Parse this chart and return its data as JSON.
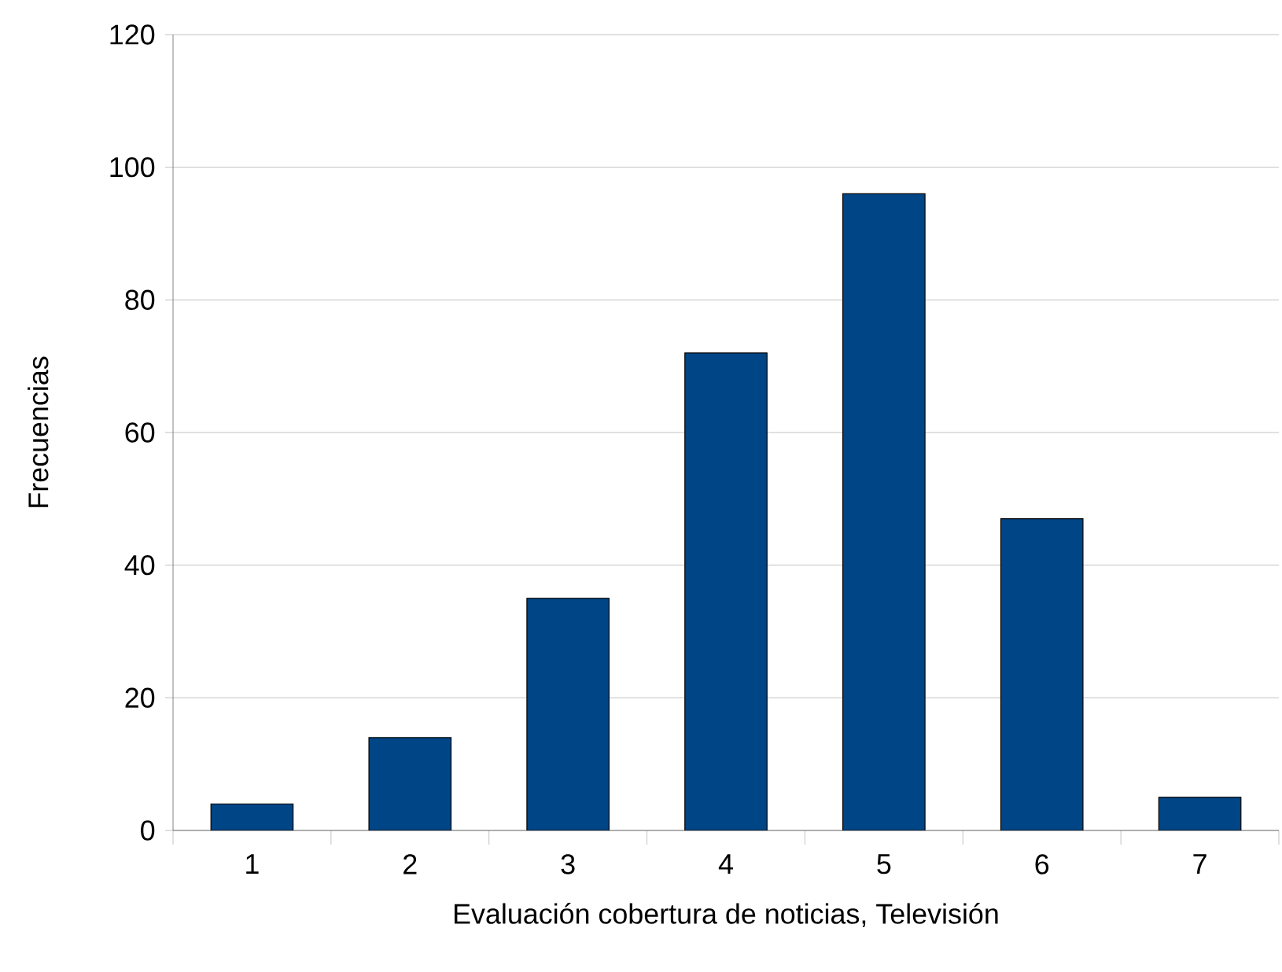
{
  "chart_data": {
    "type": "bar",
    "xlabel": "Evaluación cobertura de noticias, Televisión",
    "ylabel": "Frecuencias",
    "categories": [
      "1",
      "2",
      "3",
      "4",
      "5",
      "6",
      "7"
    ],
    "values": [
      4,
      14,
      35,
      72,
      96,
      47,
      5
    ],
    "color": "#004586",
    "ylim": [
      0,
      120
    ],
    "yticks": [
      0,
      20,
      40,
      60,
      80,
      100,
      120
    ],
    "grid": "y"
  }
}
